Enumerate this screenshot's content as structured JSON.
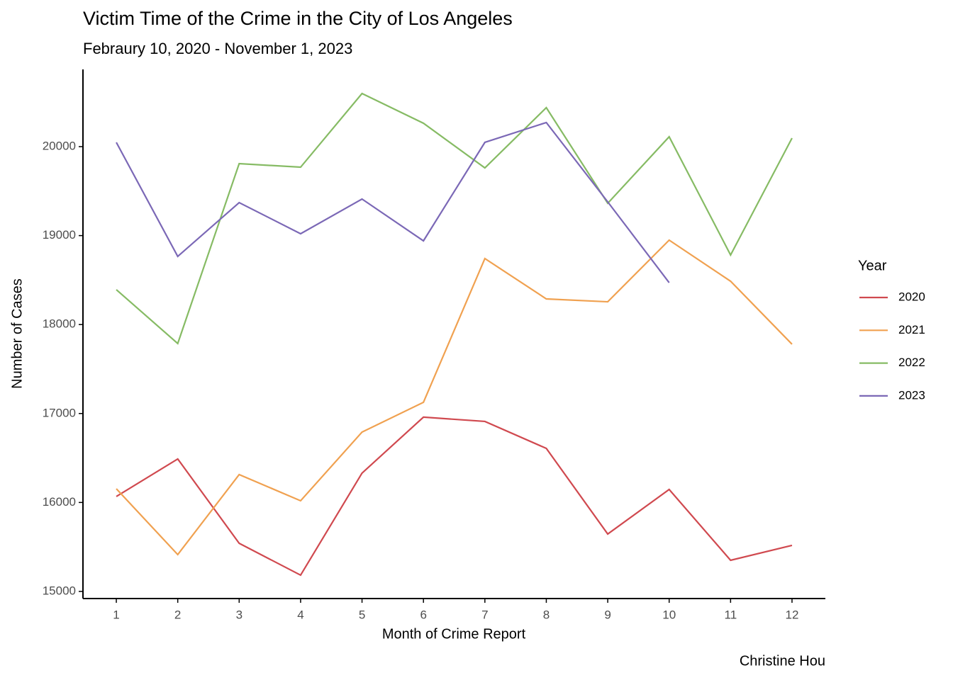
{
  "chart_data": {
    "type": "line",
    "title": "Victim Time of the Crime in the City of Los Angeles",
    "subtitle": "Febraury 10, 2020 - November 1, 2023",
    "x_label": "Month of Crime Report",
    "y_label": "Number of Cases",
    "caption": "Christine Hou",
    "legend_title": "Year",
    "legend_position": "right",
    "x": [
      1,
      2,
      3,
      4,
      5,
      6,
      7,
      8,
      9,
      10,
      11,
      12
    ],
    "series": [
      {
        "name": "2020",
        "color": "#d0494f",
        "values": [
          16067,
          16489,
          15541,
          15183,
          16330,
          16959,
          16911,
          16608,
          15645,
          16146,
          15350,
          15518
        ]
      },
      {
        "name": "2021",
        "color": "#f0a150",
        "values": [
          16154,
          15414,
          16314,
          16019,
          16791,
          17126,
          18742,
          18288,
          18256,
          18949,
          18487,
          17779
        ]
      },
      {
        "name": "2022",
        "color": "#86bb64",
        "values": [
          18392,
          17787,
          19809,
          19769,
          20597,
          20263,
          19761,
          20438,
          19363,
          20111,
          18782,
          20096
        ]
      },
      {
        "name": "2023",
        "color": "#7b68b6",
        "values": [
          20048,
          18766,
          19371,
          19021,
          19411,
          18941,
          20048,
          20271,
          19379,
          18471,
          null,
          null
        ]
      }
    ],
    "xlim": [
      0.457,
      12.543
    ],
    "ylim": [
      14920,
      20868
    ],
    "xticks": [
      1,
      2,
      3,
      4,
      5,
      6,
      7,
      8,
      9,
      10,
      11,
      12
    ],
    "yticks": [
      15000,
      16000,
      17000,
      18000,
      19000,
      20000
    ],
    "grid": false
  }
}
